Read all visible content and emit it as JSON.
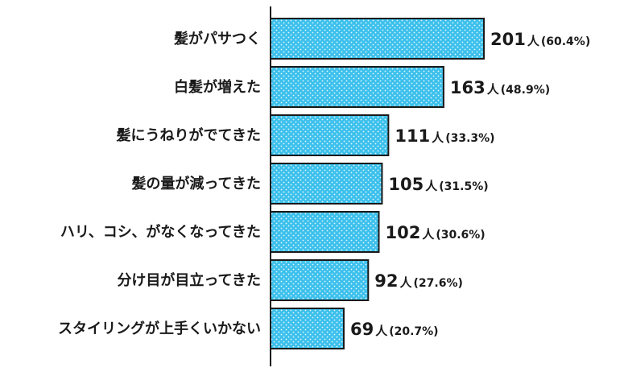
{
  "chart_data": {
    "type": "bar",
    "orientation": "horizontal",
    "categories": [
      "髪がパサつく",
      "白髪が増えた",
      "髪にうねりがでてきた",
      "髪の量が減ってきた",
      "ハリ、コシ、がなくなってきた",
      "分け目が目立ってきた",
      "スタイリングが上手くいかない"
    ],
    "values": [
      201,
      163,
      111,
      105,
      102,
      92,
      69
    ],
    "unit": "人",
    "percent_labels": [
      "(60.4%)",
      "(48.9%)",
      "(33.3%)",
      "(31.5%)",
      "(30.6%)",
      "(27.6%)",
      "(20.7%)"
    ],
    "xlim": [
      0,
      201
    ],
    "grid": false,
    "legend": "none",
    "colors": {
      "bar_fill": "#3cc0ec",
      "bar_dot": "#e6f8fd",
      "bar_stroke": "#1a1a1a",
      "axis": "#1a1a1a",
      "text": "#1a1a1a"
    }
  }
}
